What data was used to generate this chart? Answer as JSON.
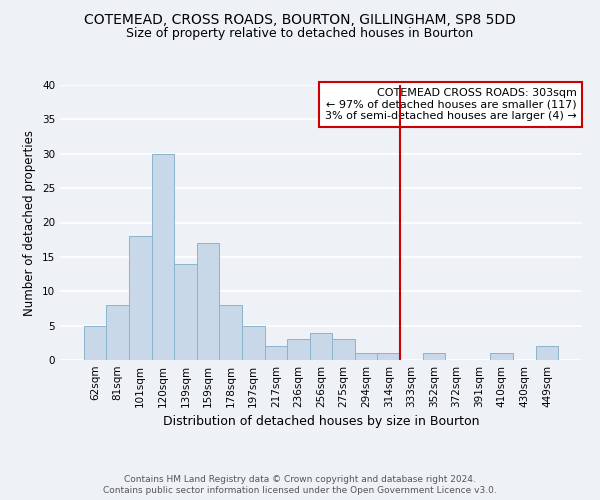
{
  "title": "COTEMEAD, CROSS ROADS, BOURTON, GILLINGHAM, SP8 5DD",
  "subtitle": "Size of property relative to detached houses in Bourton",
  "xlabel": "Distribution of detached houses by size in Bourton",
  "ylabel": "Number of detached properties",
  "bar_labels": [
    "62sqm",
    "81sqm",
    "101sqm",
    "120sqm",
    "139sqm",
    "159sqm",
    "178sqm",
    "197sqm",
    "217sqm",
    "236sqm",
    "256sqm",
    "275sqm",
    "294sqm",
    "314sqm",
    "333sqm",
    "352sqm",
    "372sqm",
    "391sqm",
    "410sqm",
    "430sqm",
    "449sqm"
  ],
  "bar_values": [
    5,
    8,
    18,
    30,
    14,
    17,
    8,
    5,
    2,
    3,
    4,
    3,
    1,
    1,
    0,
    1,
    0,
    0,
    1,
    0,
    2
  ],
  "bar_color": "#c8d8e8",
  "bar_edge_color": "#8ab4cc",
  "vline_x": 13.5,
  "vline_color": "#cc0000",
  "annotation_title": "COTEMEAD CROSS ROADS: 303sqm",
  "annotation_line1": "← 97% of detached houses are smaller (117)",
  "annotation_line2": "3% of semi-detached houses are larger (4) →",
  "ylim": [
    0,
    40
  ],
  "yticks": [
    0,
    5,
    10,
    15,
    20,
    25,
    30,
    35,
    40
  ],
  "footer1": "Contains HM Land Registry data © Crown copyright and database right 2024.",
  "footer2": "Contains public sector information licensed under the Open Government Licence v3.0.",
  "bg_color": "#eef2f6",
  "grid_color": "#ffffff",
  "title_fontsize": 10,
  "subtitle_fontsize": 9,
  "tick_fontsize": 7.5,
  "ylabel_fontsize": 8.5,
  "xlabel_fontsize": 9,
  "footer_fontsize": 6.5
}
